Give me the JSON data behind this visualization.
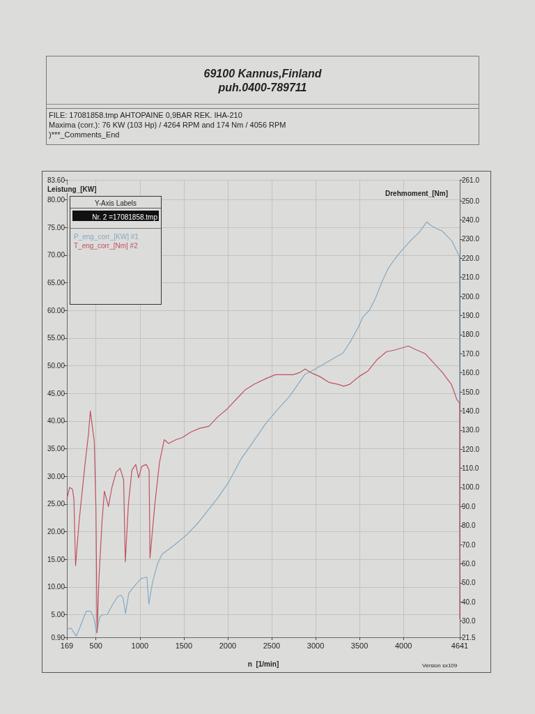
{
  "chart_data": {
    "type": "line",
    "title": "69100 Kannus,Finland",
    "subtitle": "puh.0400-789711",
    "xlabel": "n  [1/min]",
    "ylabel": "Leistung_[KW]",
    "y2label": "Drehmoment_[Nm]",
    "legend_title": "Y-Axis Labels",
    "annotations": [
      "FILE: 17081858.tmp AHTOPAINE 0,9BAR REK. IHA-210",
      "Maxima (corr.): 76 KW (103 Hp) / 4264 RPM and 174 Nm / 4056 RPM",
      ")***_Comments_End",
      "Nr. 2 =17081858.tmp",
      "Version sx109"
    ],
    "xlim": [
      169,
      4641
    ],
    "xticks": [
      169,
      500,
      1000,
      1500,
      2000,
      2500,
      3000,
      3500,
      4000,
      4641
    ],
    "ylim": [
      0.9,
      83.6
    ],
    "yticks": [
      {
        "value": 0.9,
        "label": "0.90"
      },
      {
        "value": 5,
        "label": "5.00"
      },
      {
        "value": 10,
        "label": "10.00"
      },
      {
        "value": 15,
        "label": "15.00"
      },
      {
        "value": 20,
        "label": "20.00"
      },
      {
        "value": 25,
        "label": "25.00"
      },
      {
        "value": 30,
        "label": "30.00"
      },
      {
        "value": 35,
        "label": "35.00"
      },
      {
        "value": 40,
        "label": "40.00"
      },
      {
        "value": 45,
        "label": "45.00"
      },
      {
        "value": 50,
        "label": "50.00"
      },
      {
        "value": 55,
        "label": "55.00"
      },
      {
        "value": 60,
        "label": "60.00"
      },
      {
        "value": 65,
        "label": "65.00"
      },
      {
        "value": 70,
        "label": "70.00"
      },
      {
        "value": 75,
        "label": "75.00"
      },
      {
        "value": 80,
        "label": "80.00"
      },
      {
        "value": 83.6,
        "label": "83.60"
      }
    ],
    "y2lim": [
      21.5,
      261
    ],
    "y2ticks": [
      {
        "value": 21.5,
        "label": "21.5"
      },
      {
        "value": 30,
        "label": "30.0"
      },
      {
        "value": 40,
        "label": "40.0"
      },
      {
        "value": 50,
        "label": "50.0"
      },
      {
        "value": 60,
        "label": "60.0"
      },
      {
        "value": 70,
        "label": "70.0"
      },
      {
        "value": 80,
        "label": "80.0"
      },
      {
        "value": 90,
        "label": "90.0"
      },
      {
        "value": 100,
        "label": "100.0"
      },
      {
        "value": 110,
        "label": "110.0"
      },
      {
        "value": 120,
        "label": "120.0"
      },
      {
        "value": 130,
        "label": "130.0"
      },
      {
        "value": 140,
        "label": "140.0"
      },
      {
        "value": 150,
        "label": "150.0"
      },
      {
        "value": 160,
        "label": "160.0"
      },
      {
        "value": 170,
        "label": "170.0"
      },
      {
        "value": 180,
        "label": "180.0"
      },
      {
        "value": 190,
        "label": "190.0"
      },
      {
        "value": 200,
        "label": "200.0"
      },
      {
        "value": 210,
        "label": "210.0"
      },
      {
        "value": 220,
        "label": "220.0"
      },
      {
        "value": 230,
        "label": "230.0"
      },
      {
        "value": 240,
        "label": "240.0"
      },
      {
        "value": 250,
        "label": "250.0"
      },
      {
        "value": 261,
        "label": "261.0"
      }
    ],
    "series": [
      {
        "name": "P_eng_corr_[KW] #1",
        "color": "#86a8c2",
        "x": [
          169,
          214,
          276,
          335,
          388,
          441,
          473,
          508,
          543,
          580,
          628,
          682,
          748,
          788,
          810,
          836,
          874,
          946,
          1013,
          1080,
          1102,
          1146,
          1199,
          1251,
          1402,
          1538,
          1674,
          1776,
          1878,
          2016,
          2154,
          2292,
          2430,
          2569,
          2706,
          2810,
          2881,
          2949,
          3052,
          3190,
          3311,
          3398,
          3487,
          3542,
          3611,
          3682,
          3754,
          3826,
          3898,
          3968,
          4073,
          4179,
          4264,
          4319,
          4387,
          4438,
          4488,
          4554,
          4604,
          4637,
          4641
        ],
        "values": [
          2.3,
          2.6,
          1.1,
          3.4,
          5.6,
          5.6,
          4.6,
          1.7,
          4.6,
          5.0,
          5.0,
          6.6,
          8.3,
          8.5,
          7.9,
          5.2,
          8.9,
          10.3,
          11.5,
          11.8,
          6.9,
          11.0,
          14.1,
          15.9,
          17.7,
          19.5,
          21.8,
          23.9,
          25.9,
          29.1,
          33.2,
          36.3,
          39.5,
          42.1,
          44.5,
          46.9,
          48.5,
          49.0,
          49.9,
          51.2,
          52.3,
          54.4,
          57.0,
          58.9,
          60.0,
          62.2,
          65.1,
          67.6,
          69.2,
          70.6,
          72.5,
          74.1,
          76,
          75.3,
          74.7,
          74.4,
          73.6,
          72.5,
          70.8,
          69.7,
          15.1
        ]
      },
      {
        "name": "T_eng_corr_[Nm] #2",
        "color": "#c0505e",
        "axis": "y2",
        "x": [
          169,
          201,
          233,
          249,
          268,
          308,
          375,
          415,
          436,
          481,
          500,
          513,
          535,
          569,
          596,
          642,
          682,
          730,
          775,
          815,
          834,
          869,
          909,
          953,
          986,
          1021,
          1072,
          1105,
          1115,
          1170,
          1223,
          1277,
          1327,
          1412,
          1480,
          1582,
          1684,
          1785,
          1888,
          1992,
          2094,
          2197,
          2301,
          2437,
          2541,
          2643,
          2744,
          2813,
          2882,
          2949,
          3050,
          3151,
          3253,
          3321,
          3389,
          3493,
          3597,
          3702,
          3806,
          3909,
          4056,
          4147,
          4248,
          4347,
          4446,
          4545,
          4608,
          4641,
          4641
        ],
        "values": [
          94,
          100,
          99,
          94,
          59,
          82,
          112,
          128,
          140,
          124,
          88,
          24,
          53,
          82,
          98,
          90,
          100,
          108,
          110,
          104,
          61,
          91,
          109,
          112,
          105,
          111,
          112,
          109,
          63,
          91,
          113,
          125,
          123,
          125,
          126,
          129,
          131,
          132,
          137,
          141,
          146,
          151,
          154,
          157,
          159,
          159,
          159,
          160,
          162,
          160,
          158,
          155,
          154,
          153,
          154,
          158,
          161,
          167,
          171,
          172,
          174,
          172,
          170,
          165,
          160,
          154,
          146,
          144,
          31
        ]
      }
    ],
    "grid": true,
    "legend": "top left",
    "marker": "none",
    "line_style": "solid"
  }
}
